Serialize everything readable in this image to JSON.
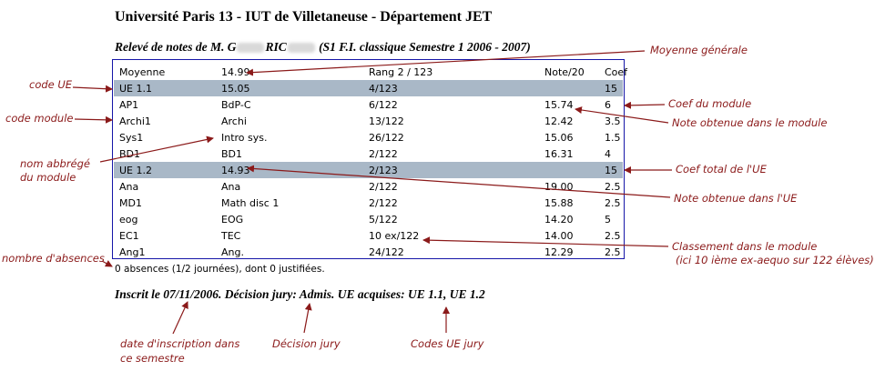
{
  "header": {
    "title": "Université Paris 13 - IUT de Villetaneuse - Département JET",
    "subtitle_prefix": "Relevé de notes de M. G",
    "subtitle_mid": "RIC",
    "subtitle_suffix": "(S1 F.I. classique Semestre 1 2006 - 2007)"
  },
  "table": {
    "columns": [
      "Moyenne",
      "14.99",
      "Rang 2 / 123",
      "Note/20",
      "Coef"
    ],
    "rows": [
      {
        "type": "ue",
        "cells": [
          "UE 1.1",
          "15.05",
          "4/123",
          "",
          "15"
        ]
      },
      {
        "type": "module",
        "cells": [
          "AP1",
          "BdP-C",
          "6/122",
          "15.74",
          "6"
        ]
      },
      {
        "type": "module",
        "cells": [
          "Archi1",
          "Archi",
          "13/122",
          "12.42",
          "3.5"
        ]
      },
      {
        "type": "module",
        "cells": [
          "Sys1",
          "Intro sys.",
          "26/122",
          "15.06",
          "1.5"
        ]
      },
      {
        "type": "module",
        "cells": [
          "BD1",
          "BD1",
          "2/122",
          "16.31",
          "4"
        ]
      },
      {
        "type": "ue",
        "cells": [
          "UE 1.2",
          "14.93",
          "2/123",
          "",
          "15"
        ]
      },
      {
        "type": "module",
        "cells": [
          "Ana",
          "Ana",
          "2/122",
          "19.00",
          "2.5"
        ]
      },
      {
        "type": "module",
        "cells": [
          "MD1",
          "Math disc 1",
          "2/122",
          "15.88",
          "2.5"
        ]
      },
      {
        "type": "module",
        "cells": [
          "eog",
          "EOG",
          "5/122",
          "14.20",
          "5"
        ]
      },
      {
        "type": "module",
        "cells": [
          "EC1",
          "TEC",
          "10 ex/122",
          "14.00",
          "2.5"
        ]
      },
      {
        "type": "module",
        "cells": [
          "Ang1",
          "Ang.",
          "24/122",
          "12.29",
          "2.5"
        ]
      }
    ]
  },
  "absences": "0 absences (1/2 journées), dont 0 justifiées.",
  "footer": "Inscrit le 07/11/2006. Décision jury: Admis. UE acquises: UE 1.1, UE 1.2",
  "annotations": {
    "moyenne_generale": "Moyenne générale",
    "code_ue": "code UE",
    "code_module": "code module",
    "coef_module": "Coef du module",
    "note_module": "Note obtenue dans le module",
    "nom_abbrege_1": "nom abbrégé",
    "nom_abbrege_2": "du module",
    "coef_total_ue": "Coef total de l'UE",
    "note_ue": "Note obtenue dans l'UE",
    "nombre_absences": "nombre d'absences",
    "classement_1": "Classement dans le module",
    "classement_2": "(ici 10 ième ex-aequo sur 122 élèves)",
    "date_inscription_1": "date d'inscription dans",
    "date_inscription_2": "ce semestre",
    "decision_jury": "Décision jury",
    "codes_ue_jury": "Codes UE jury"
  },
  "colors": {
    "ue_row": "#a9b8c7",
    "border": "#1616a8",
    "annotation": "#8b1a1a"
  }
}
